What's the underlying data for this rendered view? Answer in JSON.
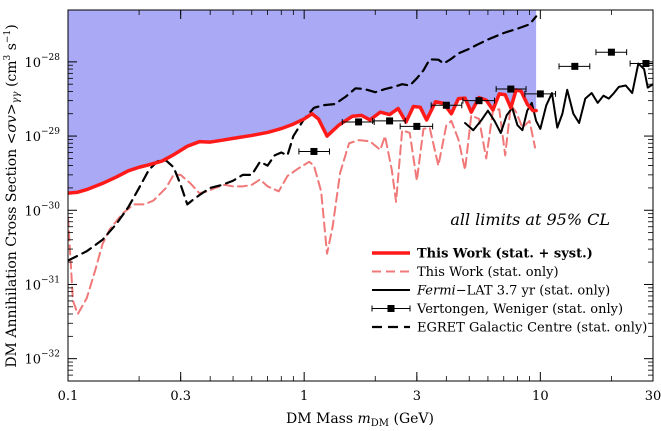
{
  "chart_data": {
    "type": "line",
    "xscale": "log",
    "yscale": "log",
    "xlim": [
      0.1,
      30
    ],
    "ylim": [
      5e-33,
      5e-28
    ],
    "xlabel": "DM Mass m_DM (GeV)",
    "ylabel": "DM Annihilation Cross Section <σv>γγ (cm3 s−1)",
    "x_ticks": [
      {
        "value": 0.1,
        "label": "0.1"
      },
      {
        "value": 0.3,
        "label": "0.3"
      },
      {
        "value": 1,
        "label": "1"
      },
      {
        "value": 3,
        "label": "3"
      },
      {
        "value": 10,
        "label": "10"
      },
      {
        "value": 30,
        "label": "30"
      }
    ],
    "y_ticks": [
      {
        "value": 1e-32,
        "mantissa": "10",
        "exponent": "−32"
      },
      {
        "value": 1e-31,
        "mantissa": "10",
        "exponent": "−31"
      },
      {
        "value": 1e-30,
        "mantissa": "10",
        "exponent": "−30"
      },
      {
        "value": 1e-29,
        "mantissa": "10",
        "exponent": "−29"
      },
      {
        "value": 1e-28,
        "mantissa": "10",
        "exponent": "−28"
      }
    ],
    "annotation": "all limits at 95% CL",
    "excluded_region": {
      "color": "#a9a9f5",
      "x_max": 9.6
    },
    "series": [
      {
        "name": "This Work (stat. + syst.)",
        "color": "#ff1a1a",
        "width": 3.5,
        "dash": "",
        "legend_bold": true,
        "x": [
          0.1,
          0.11,
          0.12,
          0.14,
          0.16,
          0.18,
          0.2,
          0.22,
          0.25,
          0.28,
          0.32,
          0.36,
          0.4,
          0.45,
          0.5,
          0.6,
          0.7,
          0.8,
          0.9,
          1.0,
          1.08,
          1.15,
          1.25,
          1.4,
          1.6,
          1.75,
          1.9,
          2.1,
          2.3,
          2.5,
          2.7,
          2.9,
          3.1,
          3.3,
          3.6,
          3.9,
          4.2,
          4.5,
          4.8,
          5.1,
          5.5,
          5.9,
          6.3,
          6.7,
          7.1,
          7.5,
          7.9,
          8.3,
          8.8,
          9.3,
          9.6
        ],
        "y": [
          1.7e-30,
          1.75e-30,
          1.9e-30,
          2.3e-30,
          2.8e-30,
          3.4e-30,
          3.8e-30,
          4.1e-30,
          4.6e-30,
          5.6e-30,
          7.3e-30,
          8.4e-30,
          8.3e-30,
          8.8e-30,
          9.3e-30,
          1.02e-29,
          1.12e-29,
          1.26e-29,
          1.45e-29,
          1.7e-29,
          2e-29,
          1.7e-29,
          1e-29,
          1.4e-29,
          1.85e-29,
          1.9e-29,
          1.65e-29,
          2.1e-29,
          1.95e-29,
          2.35e-29,
          1.55e-29,
          2.5e-29,
          2.45e-29,
          1.65e-29,
          2.9e-29,
          2.75e-29,
          2e-29,
          3.2e-29,
          3.25e-29,
          2.1e-29,
          3.3e-29,
          3.05e-29,
          2.25e-29,
          3.7e-29,
          3.6e-29,
          2.4e-29,
          4.2e-29,
          4e-29,
          2.7e-29,
          2.2e-29,
          2.2e-29
        ]
      },
      {
        "name": "This Work (stat. only)",
        "color": "#f07878",
        "width": 2,
        "dash": "9,5",
        "legend_bold": false,
        "x": [
          0.1,
          0.105,
          0.11,
          0.12,
          0.13,
          0.14,
          0.15,
          0.17,
          0.19,
          0.21,
          0.23,
          0.26,
          0.28,
          0.3,
          0.33,
          0.36,
          0.39,
          0.42,
          0.46,
          0.5,
          0.55,
          0.6,
          0.65,
          0.7,
          0.78,
          0.85,
          0.95,
          1.05,
          1.1,
          1.18,
          1.25,
          1.32,
          1.42,
          1.55,
          1.7,
          1.9,
          2.1,
          2.2,
          2.35,
          2.45,
          2.6,
          2.8,
          3.0,
          3.2,
          3.4,
          3.7,
          4.0,
          4.2,
          4.5,
          4.8,
          5.1,
          5.5,
          5.9,
          6.3,
          6.7,
          7.1,
          7.5,
          7.9,
          8.4,
          9.0,
          9.5
        ],
        "y": [
          8e-31,
          6e-32,
          4e-32,
          6.5e-32,
          1.5e-31,
          3.5e-31,
          5.5e-31,
          9e-31,
          1.2e-30,
          1.2e-30,
          1.35e-30,
          2e-30,
          3e-30,
          3e-30,
          2.3e-30,
          1.7e-30,
          1.8e-30,
          2e-30,
          2.2e-30,
          2.1e-30,
          2.1e-30,
          2.2e-30,
          2.6e-30,
          2.1e-30,
          1.8e-30,
          2.9e-30,
          3.7e-30,
          4.5e-30,
          4e-30,
          1.8e-30,
          2.6e-31,
          6e-31,
          3.2e-30,
          8e-30,
          8.8e-30,
          8.5e-30,
          6.5e-30,
          1e-29,
          3.5e-30,
          1.3e-30,
          1.2e-29,
          1.1e-29,
          2.5e-30,
          1.25e-29,
          1.3e-29,
          4e-30,
          1.4e-29,
          1.6e-29,
          9e-30,
          3.5e-30,
          1.9e-29,
          1.7e-29,
          5e-30,
          2.2e-29,
          2.3e-29,
          5.5e-30,
          2.6e-29,
          2.1e-29,
          1.3e-29,
          1.6e-29,
          7e-30
        ]
      },
      {
        "name": "Fermi−LAT 3.7 yr (stat. only)",
        "color": "#000000",
        "width": 2,
        "dash": "",
        "legend_bold": false,
        "x": [
          4.8,
          5.2,
          5.6,
          6.0,
          6.4,
          6.8,
          7.2,
          7.6,
          8.0,
          8.4,
          8.8,
          9.2,
          9.6,
          10.0,
          10.6,
          11.2,
          11.8,
          12.4,
          13.0,
          13.8,
          14.6,
          15.5,
          16.5,
          17.5,
          18.5,
          19.5,
          20.5,
          21.5,
          23.0,
          24.5,
          26.0,
          27.5,
          28.5,
          30.0
        ],
        "y": [
          1.5e-29,
          1.2e-29,
          1.6e-29,
          2.2e-29,
          1.6e-29,
          1.1e-29,
          1.9e-29,
          2.4e-29,
          1.4e-29,
          1.2e-29,
          2.2e-29,
          2.8e-29,
          1.6e-29,
          1.25e-29,
          2.6e-29,
          3.8e-29,
          1.3e-29,
          2e-29,
          4.2e-29,
          2e-29,
          1.5e-29,
          3.2e-29,
          3.8e-29,
          2.8e-29,
          3.5e-29,
          3.2e-29,
          3.8e-29,
          4.6e-29,
          4.8e-29,
          3.8e-29,
          9.5e-29,
          8e-29,
          4.5e-29,
          5e-29
        ]
      },
      {
        "name": "EGRET Galactic Centre (stat. only)",
        "color": "#000000",
        "width": 2.2,
        "dash": "10,6",
        "legend_bold": false,
        "x": [
          0.1,
          0.12,
          0.14,
          0.16,
          0.18,
          0.2,
          0.22,
          0.24,
          0.26,
          0.28,
          0.3,
          0.32,
          0.34,
          0.36,
          0.4,
          0.45,
          0.5,
          0.55,
          0.6,
          0.65,
          0.7,
          0.75,
          0.8,
          0.85,
          0.9,
          1.0,
          1.1,
          1.2,
          1.35,
          1.5,
          1.65,
          1.8,
          2.0,
          2.2,
          2.4,
          2.6,
          2.8,
          3.0,
          3.2,
          3.4,
          3.7,
          3.9,
          4.2,
          4.5,
          5.0,
          5.5,
          6.0,
          7.0,
          8.0,
          9.0,
          9.6
        ],
        "y": [
          2.1e-31,
          2.8e-31,
          4e-31,
          6.5e-31,
          1.1e-30,
          2e-30,
          3.5e-30,
          4.6e-30,
          4.7e-30,
          3.8e-30,
          2.2e-30,
          1.2e-30,
          1.4e-30,
          1.6e-30,
          2e-30,
          2.2e-30,
          2.5e-30,
          3e-30,
          3e-30,
          4.5e-30,
          4e-30,
          5.5e-30,
          6e-30,
          5.5e-30,
          1e-29,
          1.7e-29,
          2.4e-29,
          2.6e-29,
          2.7e-29,
          3.4e-29,
          4.4e-29,
          4.3e-29,
          3.9e-29,
          4.3e-29,
          4.6e-29,
          5e-29,
          4.8e-29,
          6e-29,
          7.7e-29,
          1.08e-28,
          1.07e-28,
          9.5e-29,
          1.1e-28,
          1.3e-28,
          1.5e-28,
          1.75e-28,
          2e-28,
          2.45e-28,
          2.8e-28,
          3.2e-28,
          4.1e-28
        ]
      }
    ],
    "points": {
      "name": "Vertongen, Weniger (stat. only)",
      "color": "#000000",
      "x": [
        1.1,
        1.7,
        2.3,
        3.0,
        4.0,
        5.5,
        7.5,
        10.0,
        14.0,
        20.0,
        28.0
      ],
      "y": [
        6.2e-30,
        1.55e-29,
        1.6e-29,
        1.35e-29,
        2.6e-29,
        3e-29,
        4.3e-29,
        3.7e-29,
        8.7e-29,
        1.35e-28,
        9.5e-29
      ],
      "x_err_low": [
        0.95,
        1.45,
        1.95,
        2.55,
        3.45,
        4.7,
        6.5,
        8.6,
        12.0,
        17.2,
        24.0
      ],
      "x_err_high": [
        1.28,
        1.98,
        2.68,
        3.5,
        4.65,
        6.4,
        8.7,
        11.6,
        16.2,
        23.2,
        30.0
      ]
    },
    "legend": {
      "placement": "bottom-right",
      "entries": [
        {
          "text": "This Work (stat. + syst.)",
          "bold": true
        },
        {
          "text": "This Work (stat. only)",
          "bold": false
        },
        {
          "text_parts": {
            "italic": "Fermi",
            "rest": "−LAT 3.7 yr (stat. only)"
          },
          "bold": false
        },
        {
          "text": "Vertongen, Weniger (stat. only)",
          "bold": false
        },
        {
          "text": "EGRET Galactic Centre (stat. only)",
          "bold": false
        }
      ]
    },
    "axis_text": {
      "x_prefix": "DM Mass ",
      "x_var": "m",
      "x_sub": "DM",
      "x_suffix": " (GeV)",
      "y_prefix": "DM Annihilation Cross Section <",
      "y_var": "σv",
      "y_mid": ">",
      "y_sub": "γγ",
      "y_unit_a": " (cm",
      "y_unit_exp1": "3",
      "y_unit_b": " s",
      "y_unit_exp2": "−1",
      "y_unit_c": ")"
    }
  }
}
